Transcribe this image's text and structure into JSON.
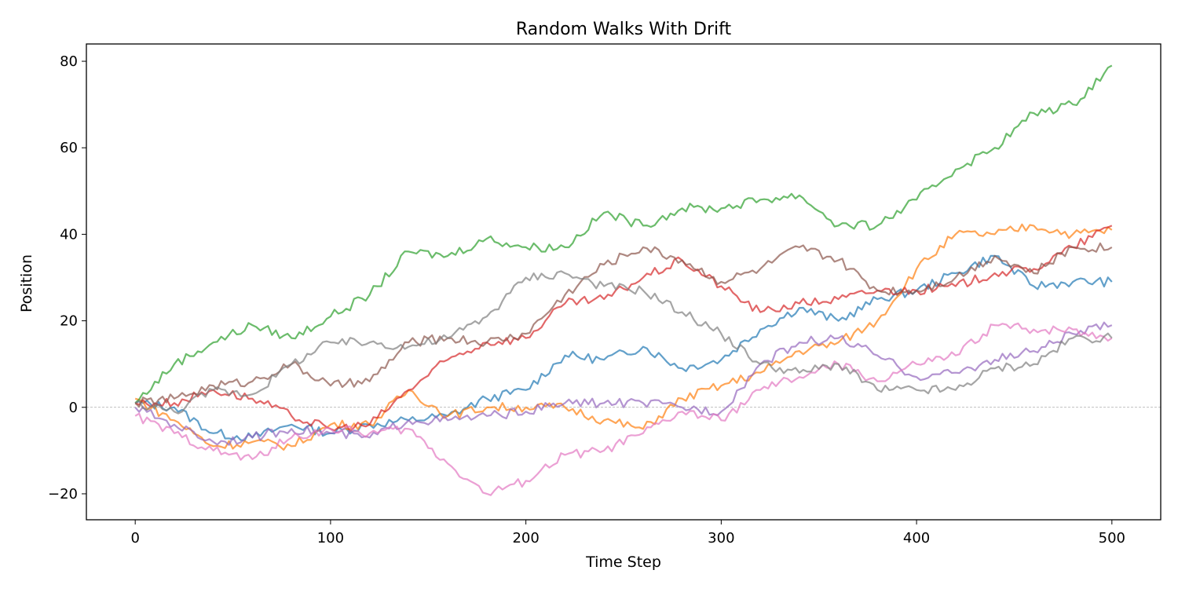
{
  "chart_data": {
    "type": "line",
    "title": "Random Walks With Drift",
    "xlabel": "Time Step",
    "ylabel": "Position",
    "xlim": [
      -25,
      525
    ],
    "ylim": [
      -26,
      84
    ],
    "xticks": [
      0,
      100,
      200,
      300,
      400,
      500
    ],
    "yticks": [
      -20,
      0,
      20,
      40,
      60,
      80
    ],
    "xtick_labels": [
      "0",
      "100",
      "200",
      "300",
      "400",
      "500"
    ],
    "ytick_labels": [
      "−20",
      "0",
      "20",
      "40",
      "60",
      "80"
    ],
    "grid": false,
    "legend": "none",
    "reference_line": {
      "y": 0,
      "style": "dashed",
      "color": "#aaaaaa"
    },
    "x": [
      0,
      20,
      40,
      60,
      80,
      100,
      120,
      140,
      160,
      180,
      200,
      220,
      240,
      260,
      280,
      300,
      320,
      340,
      360,
      380,
      400,
      420,
      440,
      460,
      480,
      500
    ],
    "series": [
      {
        "color": "#1f77b4",
        "values": [
          1,
          0,
          -6,
          -7,
          -4,
          -6,
          -4,
          -3,
          -2,
          2,
          4,
          12,
          11,
          14,
          9,
          11,
          18,
          23,
          20,
          25,
          27,
          31,
          35,
          28,
          29,
          29
        ]
      },
      {
        "color": "#ff7f0e",
        "values": [
          2,
          -3,
          -9,
          -8,
          -9,
          -4,
          -4,
          4,
          -2,
          0,
          0,
          0,
          -3,
          -5,
          2,
          5,
          8,
          13,
          15,
          20,
          32,
          40,
          40,
          42,
          40,
          41
        ]
      },
      {
        "color": "#2ca02c",
        "values": [
          1,
          10,
          15,
          19,
          16,
          21,
          26,
          36,
          35,
          39,
          37,
          37,
          45,
          42,
          46,
          46,
          48,
          49,
          42,
          42,
          48,
          55,
          60,
          68,
          70,
          79
        ]
      },
      {
        "color": "#d62728",
        "values": [
          1,
          1,
          4,
          2,
          -2,
          -5,
          -4,
          4,
          11,
          15,
          16,
          24,
          25,
          30,
          34,
          28,
          22,
          24,
          25,
          27,
          27,
          28,
          31,
          32,
          37,
          42
        ]
      },
      {
        "color": "#9467bd",
        "values": [
          0,
          -4,
          -8,
          -7,
          -5,
          -6,
          -7,
          -3,
          -3,
          -2,
          -1,
          1,
          1,
          1,
          0,
          -1,
          10,
          15,
          16,
          12,
          7,
          8,
          11,
          13,
          17,
          19
        ]
      },
      {
        "color": "#8c564b",
        "values": [
          1,
          2,
          5,
          6,
          10,
          5,
          6,
          15,
          16,
          15,
          17,
          26,
          33,
          37,
          34,
          29,
          32,
          37,
          34,
          27,
          27,
          30,
          35,
          31,
          37,
          37
        ]
      },
      {
        "color": "#e377c2",
        "values": [
          -2,
          -6,
          -10,
          -12,
          -7,
          -5,
          -6,
          -5,
          -13,
          -20,
          -17,
          -11,
          -10,
          -6,
          -1,
          -3,
          4,
          7,
          10,
          6,
          10,
          12,
          19,
          18,
          18,
          16
        ]
      },
      {
        "color": "#7f7f7f",
        "values": [
          1,
          -1,
          4,
          3,
          10,
          15,
          15,
          14,
          16,
          21,
          30,
          31,
          28,
          27,
          22,
          17,
          10,
          8,
          10,
          4,
          4,
          4,
          9,
          10,
          16,
          16
        ]
      }
    ]
  }
}
